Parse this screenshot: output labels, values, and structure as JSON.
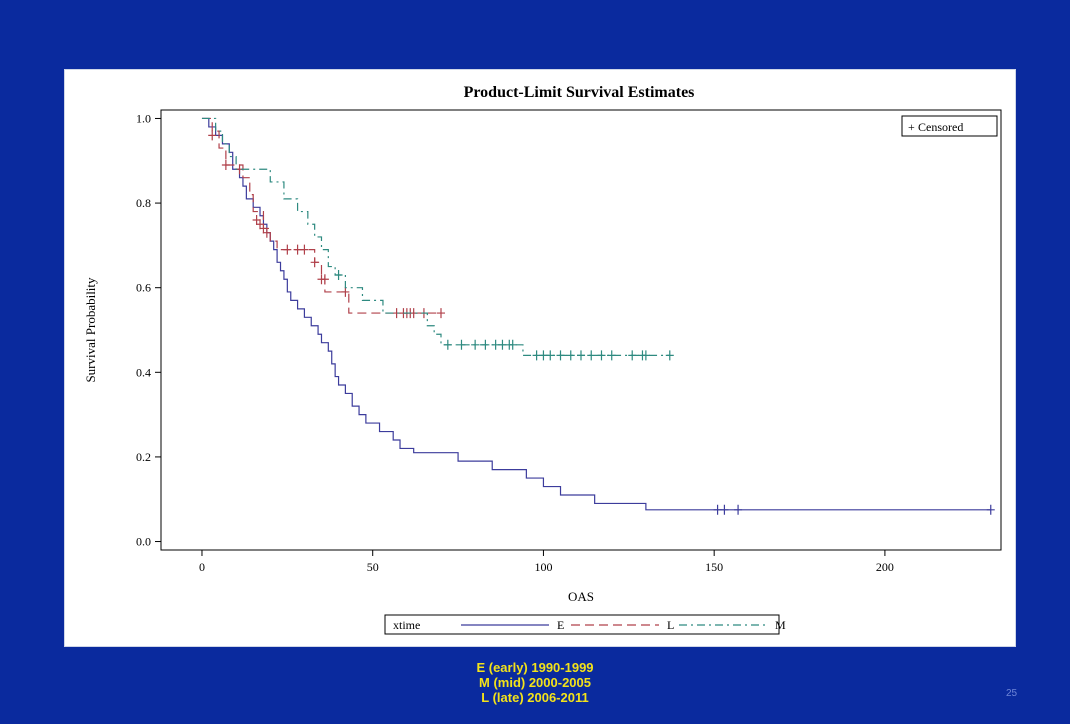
{
  "chart_data": {
    "type": "line",
    "title": "Product-Limit Survival Estimates",
    "xlabel": "OAS",
    "ylabel": "Survival Probability",
    "xlim": [
      -12,
      234
    ],
    "ylim": [
      -0.02,
      1.02
    ],
    "xticks": [
      0,
      50,
      100,
      150,
      200
    ],
    "yticks": [
      0.0,
      0.2,
      0.4,
      0.6,
      0.8,
      1.0
    ],
    "censored_legend": "Censored",
    "legend": {
      "placement": "bottom",
      "title": "xtime",
      "entries": [
        "E",
        "L",
        "M"
      ]
    },
    "series": [
      {
        "name": "E",
        "color": "#3c3c9c",
        "dash": "",
        "steps": [
          [
            0,
            1.0
          ],
          [
            2,
            0.98
          ],
          [
            4,
            0.96
          ],
          [
            6,
            0.94
          ],
          [
            8,
            0.92
          ],
          [
            9,
            0.88
          ],
          [
            11,
            0.86
          ],
          [
            12,
            0.84
          ],
          [
            13,
            0.81
          ],
          [
            15,
            0.79
          ],
          [
            17,
            0.77
          ],
          [
            18,
            0.75
          ],
          [
            19,
            0.73
          ],
          [
            20,
            0.71
          ],
          [
            21,
            0.69
          ],
          [
            22,
            0.66
          ],
          [
            23,
            0.64
          ],
          [
            24,
            0.62
          ],
          [
            25,
            0.59
          ],
          [
            26,
            0.57
          ],
          [
            28,
            0.55
          ],
          [
            30,
            0.53
          ],
          [
            32,
            0.51
          ],
          [
            34,
            0.49
          ],
          [
            35,
            0.47
          ],
          [
            37,
            0.45
          ],
          [
            38,
            0.42
          ],
          [
            39,
            0.39
          ],
          [
            40,
            0.37
          ],
          [
            42,
            0.35
          ],
          [
            44,
            0.32
          ],
          [
            46,
            0.3
          ],
          [
            48,
            0.28
          ],
          [
            52,
            0.26
          ],
          [
            56,
            0.24
          ],
          [
            58,
            0.22
          ],
          [
            62,
            0.21
          ],
          [
            75,
            0.19
          ],
          [
            85,
            0.17
          ],
          [
            95,
            0.15
          ],
          [
            100,
            0.13
          ],
          [
            105,
            0.11
          ],
          [
            115,
            0.09
          ],
          [
            130,
            0.075
          ]
        ],
        "end_x": 231,
        "censored": [
          [
            151,
            0.075
          ],
          [
            153,
            0.075
          ],
          [
            157,
            0.075
          ],
          [
            231,
            0.075
          ]
        ]
      },
      {
        "name": "L",
        "color": "#b0404a",
        "dash": "9,5",
        "steps": [
          [
            0,
            1.0
          ],
          [
            3,
            0.97
          ],
          [
            5,
            0.93
          ],
          [
            7,
            0.89
          ],
          [
            12,
            0.86
          ],
          [
            14,
            0.82
          ],
          [
            15,
            0.78
          ],
          [
            18,
            0.74
          ],
          [
            20,
            0.71
          ],
          [
            22,
            0.69
          ],
          [
            33,
            0.66
          ],
          [
            35,
            0.63
          ],
          [
            36,
            0.59
          ],
          [
            43,
            0.54
          ]
        ],
        "end_x": 70,
        "censored": [
          [
            3,
            0.96
          ],
          [
            7,
            0.89
          ],
          [
            11,
            0.88
          ],
          [
            16,
            0.76
          ],
          [
            17,
            0.75
          ],
          [
            18,
            0.74
          ],
          [
            19,
            0.73
          ],
          [
            25,
            0.69
          ],
          [
            28,
            0.69
          ],
          [
            30,
            0.69
          ],
          [
            33,
            0.66
          ],
          [
            35,
            0.62
          ],
          [
            36,
            0.62
          ],
          [
            42,
            0.59
          ],
          [
            57,
            0.54
          ],
          [
            59,
            0.54
          ],
          [
            60,
            0.54
          ],
          [
            61,
            0.54
          ],
          [
            62,
            0.54
          ],
          [
            65,
            0.54
          ],
          [
            70,
            0.54
          ]
        ]
      },
      {
        "name": "M",
        "color": "#2e8a80",
        "dash": "8,4,2,4",
        "steps": [
          [
            0,
            1.0
          ],
          [
            4,
            0.97
          ],
          [
            6,
            0.94
          ],
          [
            8,
            0.91
          ],
          [
            10,
            0.88
          ],
          [
            20,
            0.85
          ],
          [
            24,
            0.81
          ],
          [
            28,
            0.78
          ],
          [
            31,
            0.75
          ],
          [
            33,
            0.72
          ],
          [
            35,
            0.69
          ],
          [
            37,
            0.65
          ],
          [
            39,
            0.63
          ],
          [
            42,
            0.6
          ],
          [
            47,
            0.57
          ],
          [
            53,
            0.54
          ],
          [
            66,
            0.51
          ],
          [
            68,
            0.49
          ],
          [
            70,
            0.465
          ],
          [
            94,
            0.44
          ]
        ],
        "end_x": 137,
        "censored": [
          [
            40,
            0.63
          ],
          [
            72,
            0.465
          ],
          [
            76,
            0.465
          ],
          [
            80,
            0.465
          ],
          [
            83,
            0.465
          ],
          [
            86,
            0.465
          ],
          [
            88,
            0.465
          ],
          [
            90,
            0.465
          ],
          [
            91,
            0.465
          ],
          [
            98,
            0.44
          ],
          [
            100,
            0.44
          ],
          [
            102,
            0.44
          ],
          [
            105,
            0.44
          ],
          [
            108,
            0.44
          ],
          [
            111,
            0.44
          ],
          [
            114,
            0.44
          ],
          [
            117,
            0.44
          ],
          [
            120,
            0.44
          ],
          [
            126,
            0.44
          ],
          [
            129,
            0.44
          ],
          [
            130,
            0.44
          ],
          [
            137,
            0.44
          ]
        ]
      }
    ]
  },
  "footer": {
    "lines": [
      "E (early) 1990-1999",
      "M (mid) 2000-2005",
      "L (late) 2006-2011"
    ],
    "slide_number": "25"
  }
}
